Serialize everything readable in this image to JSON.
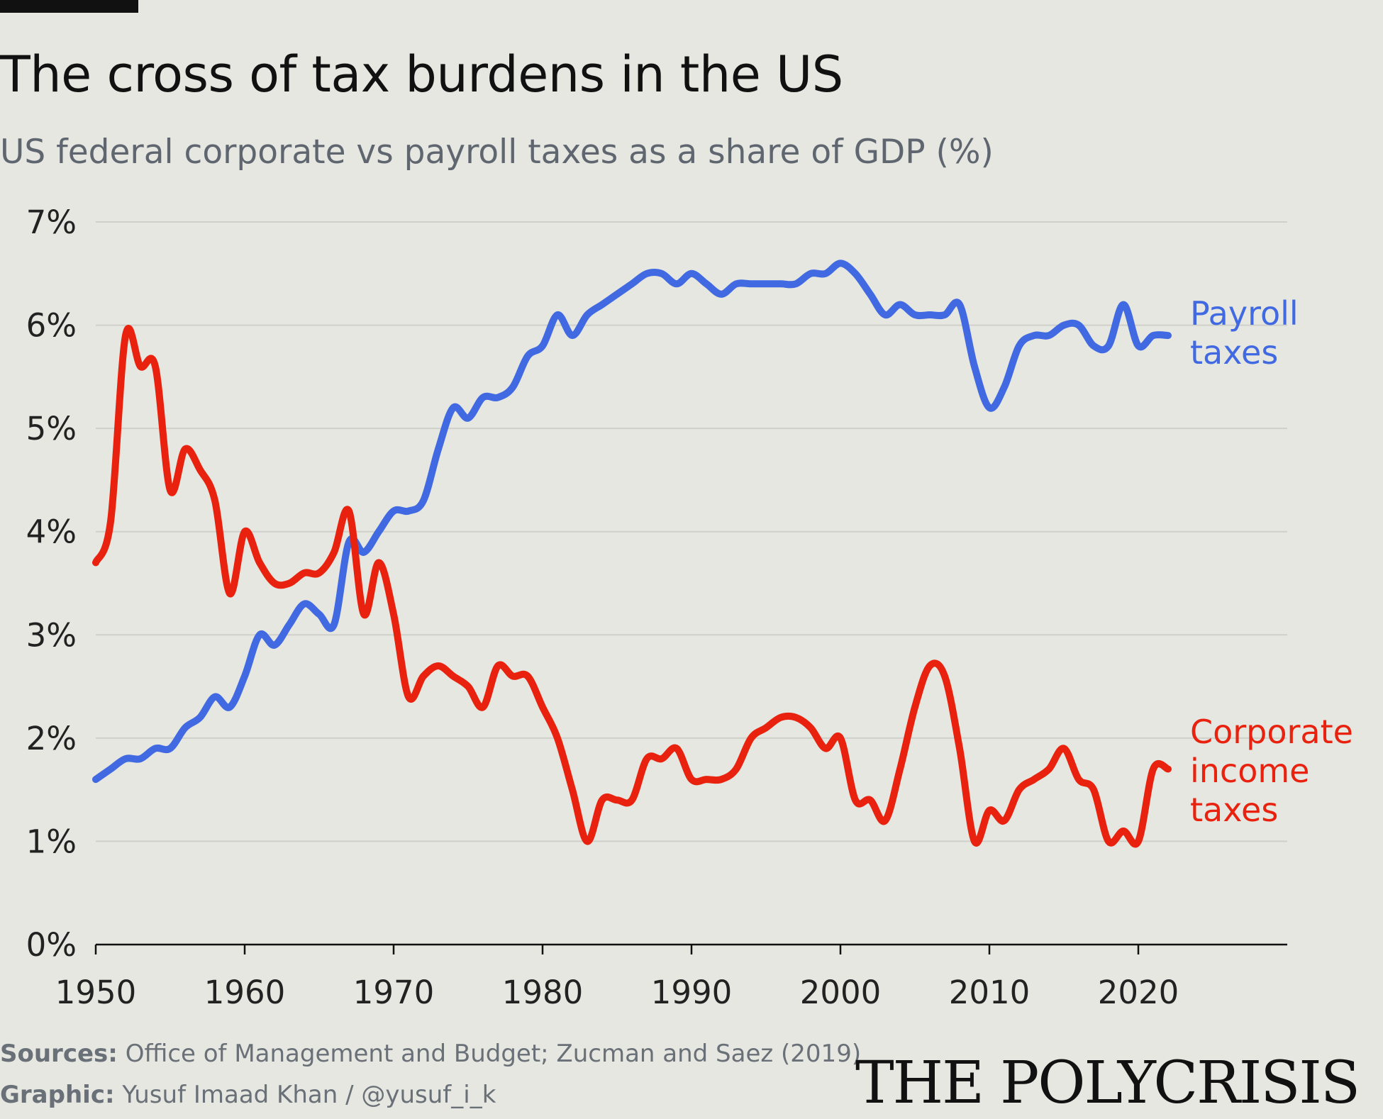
{
  "header": {
    "title": "The cross of tax burdens in the US",
    "subtitle": "US federal corporate vs payroll taxes as a share of GDP (%)"
  },
  "footer": {
    "sources_key": "Sources:",
    "sources_text": "Office of Management and Budget; Zucman and Saez (2019)",
    "graphic_key": "Graphic:",
    "graphic_text": "Yusuf Imaad Khan / @yusuf_i_k",
    "brand": "THE POLYCRISIS"
  },
  "colors": {
    "background": "#e6e7e0",
    "grid": "#cfd0ca",
    "axis": "#111111",
    "payroll": "#4169e1",
    "corporate": "#e8220e"
  },
  "chart_data": {
    "type": "line",
    "title": "The cross of tax burdens in the US",
    "subtitle": "US federal corporate vs payroll taxes as a share of GDP (%)",
    "xlabel": "",
    "ylabel": "",
    "xlim": [
      1950,
      2030
    ],
    "ylim": [
      0,
      7
    ],
    "x_ticks": [
      1950,
      1960,
      1970,
      1980,
      1990,
      2000,
      2010,
      2020
    ],
    "x_tick_labels": [
      "1950",
      "1960",
      "1970",
      "1980",
      "1990",
      "2000",
      "2010",
      "2020"
    ],
    "y_ticks": [
      0,
      1,
      2,
      3,
      4,
      5,
      6,
      7
    ],
    "y_tick_labels": [
      "0%",
      "1%",
      "2%",
      "3%",
      "4%",
      "5%",
      "6%",
      "7%"
    ],
    "grid": true,
    "legend": "direct labels at right end of lines",
    "x": [
      1950,
      1951,
      1952,
      1953,
      1954,
      1955,
      1956,
      1957,
      1958,
      1959,
      1960,
      1961,
      1962,
      1963,
      1964,
      1965,
      1966,
      1967,
      1968,
      1969,
      1970,
      1971,
      1972,
      1973,
      1974,
      1975,
      1976,
      1977,
      1978,
      1979,
      1980,
      1981,
      1982,
      1983,
      1984,
      1985,
      1986,
      1987,
      1988,
      1989,
      1990,
      1991,
      1992,
      1993,
      1994,
      1995,
      1996,
      1997,
      1998,
      1999,
      2000,
      2001,
      2002,
      2003,
      2004,
      2005,
      2006,
      2007,
      2008,
      2009,
      2010,
      2011,
      2012,
      2013,
      2014,
      2015,
      2016,
      2017,
      2018,
      2019,
      2020,
      2021,
      2022
    ],
    "series": [
      {
        "name": "Payroll taxes",
        "label_lines": [
          "Payroll",
          "taxes"
        ],
        "color": "#4169e1",
        "values": [
          1.6,
          1.7,
          1.8,
          1.8,
          1.9,
          1.9,
          2.1,
          2.2,
          2.4,
          2.3,
          2.6,
          3.0,
          2.9,
          3.1,
          3.3,
          3.2,
          3.1,
          3.9,
          3.8,
          4.0,
          4.2,
          4.2,
          4.3,
          4.8,
          5.2,
          5.1,
          5.3,
          5.3,
          5.4,
          5.7,
          5.8,
          6.1,
          5.9,
          6.1,
          6.2,
          6.3,
          6.4,
          6.5,
          6.5,
          6.4,
          6.5,
          6.4,
          6.3,
          6.4,
          6.4,
          6.4,
          6.4,
          6.4,
          6.5,
          6.5,
          6.6,
          6.5,
          6.3,
          6.1,
          6.2,
          6.1,
          6.1,
          6.1,
          6.2,
          5.6,
          5.2,
          5.4,
          5.8,
          5.9,
          5.9,
          6.0,
          6.0,
          5.8,
          5.8,
          6.2,
          5.8,
          5.9,
          5.9
        ]
      },
      {
        "name": "Corporate income taxes",
        "label_lines": [
          "Corporate",
          "income",
          "taxes"
        ],
        "color": "#e8220e",
        "values": [
          3.7,
          4.1,
          5.9,
          5.6,
          5.6,
          4.4,
          4.8,
          4.6,
          4.3,
          3.4,
          4.0,
          3.7,
          3.5,
          3.5,
          3.6,
          3.6,
          3.8,
          4.2,
          3.2,
          3.7,
          3.2,
          2.4,
          2.6,
          2.7,
          2.6,
          2.5,
          2.3,
          2.7,
          2.6,
          2.6,
          2.3,
          2.0,
          1.5,
          1.0,
          1.4,
          1.4,
          1.4,
          1.8,
          1.8,
          1.9,
          1.6,
          1.6,
          1.6,
          1.7,
          2.0,
          2.1,
          2.2,
          2.2,
          2.1,
          1.9,
          2.0,
          1.4,
          1.4,
          1.2,
          1.7,
          2.3,
          2.7,
          2.6,
          1.9,
          1.0,
          1.3,
          1.2,
          1.5,
          1.6,
          1.7,
          1.9,
          1.6,
          1.5,
          1.0,
          1.1,
          1.0,
          1.7,
          1.7
        ]
      }
    ]
  }
}
